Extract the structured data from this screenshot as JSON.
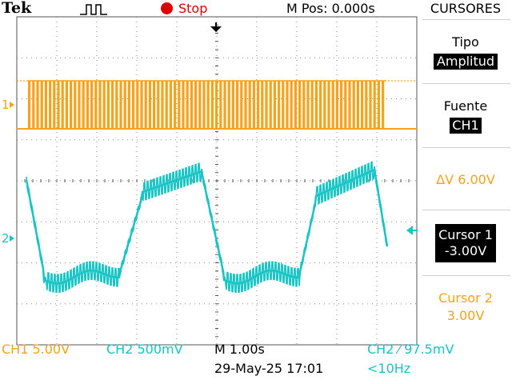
{
  "header": {
    "brand": "Tek",
    "trigger_icon": "trigger-pulse-icon",
    "run_state": "Stop",
    "run_state_color": "#dd0000",
    "m_pos": "M Pos: 0.000s"
  },
  "side_menu": {
    "title": "CURSORES",
    "tipo_label": "Tipo",
    "tipo_value": "Amplitud",
    "fuente_label": "Fuente",
    "fuente_value": "CH1",
    "delta_v": "ΔV 6.00V",
    "cursor1_label": "Cursor 1",
    "cursor1_value": "-3.00V",
    "cursor2_label": "Cursor 2",
    "cursor2_value": "3.00V"
  },
  "markers": {
    "ch1": "1",
    "ch2": "2"
  },
  "status": {
    "ch1_scale": "CH1  5.00V",
    "ch2_scale": "CH2  500mV",
    "timebase": "M 1.00s",
    "trigger": "CH2 ⁄ 97.5mV",
    "datetime": "29-May-25 17:01",
    "frequency": "<10Hz"
  },
  "colors": {
    "ch1": "#f7a21b",
    "ch2": "#18c4c4",
    "grid": "#7a7a7a",
    "stop": "#dd0000"
  }
}
